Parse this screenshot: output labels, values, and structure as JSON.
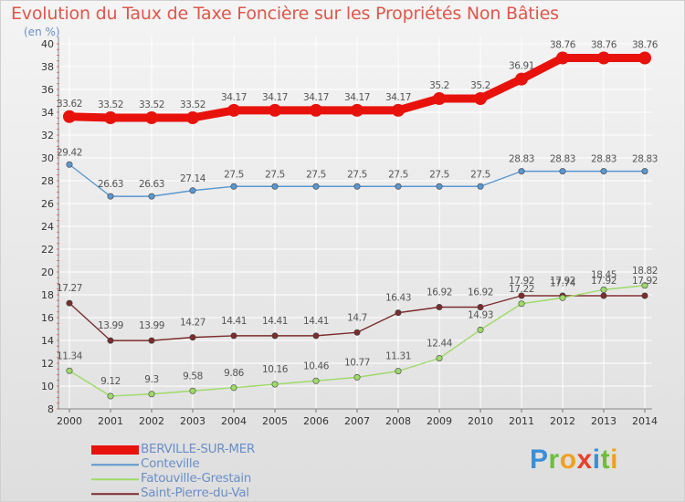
{
  "title": "Evolution du Taux de Taxe Foncière sur les Propriétés Non Bâties",
  "unit_label": "(en %)",
  "logo_text": "Proxiti",
  "chart_data": {
    "type": "line",
    "title": "Evolution du Taux de Taxe Foncière sur les Propriétés Non Bâties",
    "ylabel": "(en %)",
    "ylim": [
      8,
      40
    ],
    "yticks": [
      8,
      10,
      12,
      14,
      16,
      18,
      20,
      22,
      24,
      26,
      28,
      30,
      32,
      34,
      36,
      38,
      40
    ],
    "grid": true,
    "legend_position": "bottom-left",
    "x": [
      "2000",
      "2001",
      "2002",
      "2003",
      "2004",
      "2005",
      "2006",
      "2007",
      "2008",
      "2009",
      "2010",
      "2011",
      "2012",
      "2013",
      "2014"
    ],
    "series": [
      {
        "name": "BERVILLE-SUR-MER",
        "color": "#e8120c",
        "labels": [
          "33.62",
          "33.52",
          "33.52",
          "33.52",
          "34.17",
          "34.17",
          "34.17",
          "34.17",
          "34.17",
          "35.2",
          "35.2",
          "36.91",
          "38.76",
          "38.76",
          "38.76"
        ],
        "values": [
          33.62,
          33.52,
          33.52,
          33.52,
          34.17,
          34.17,
          34.17,
          34.17,
          34.17,
          35.2,
          35.2,
          36.91,
          38.76,
          38.76,
          38.76
        ]
      },
      {
        "name": "Conteville",
        "color": "#5a97d0",
        "labels": [
          "29.42",
          "26.63",
          "26.63",
          "27.14",
          "27.5",
          "27.5",
          "27.5",
          "27.5",
          "27.5",
          "27.5",
          "27.5",
          "28.83",
          "28.83",
          "28.83",
          "28.83"
        ],
        "values": [
          29.42,
          26.63,
          26.63,
          27.14,
          27.5,
          27.5,
          27.5,
          27.5,
          27.5,
          27.5,
          27.5,
          28.83,
          28.83,
          28.83,
          28.83
        ]
      },
      {
        "name": "Fatouville-Grestain",
        "color": "#9fda6a",
        "labels": [
          "11.34",
          "9.12",
          "9.3",
          "9.58",
          "9.86",
          "10.16",
          "10.46",
          "10.77",
          "11.31",
          "12.44",
          "14.93",
          "17.22",
          "17.74",
          "18.45",
          "18.82"
        ],
        "values": [
          11.34,
          9.12,
          9.3,
          9.58,
          9.86,
          10.16,
          10.46,
          10.77,
          11.31,
          12.44,
          14.93,
          17.22,
          17.74,
          18.45,
          18.82
        ]
      },
      {
        "name": "Saint-Pierre-du-Val",
        "color": "#7b2c2c",
        "labels": [
          "17.27",
          "13.99",
          "13.99",
          "14.27",
          "14.41",
          "14.41",
          "14.41",
          "14.7",
          "16.43",
          "16.92",
          "16.92",
          "17.92",
          "17.92",
          "17.92",
          "17.92"
        ],
        "values": [
          17.27,
          13.99,
          13.99,
          14.27,
          14.41,
          14.41,
          14.41,
          14.7,
          16.43,
          16.92,
          16.92,
          17.92,
          17.92,
          17.92,
          17.92
        ]
      }
    ]
  }
}
